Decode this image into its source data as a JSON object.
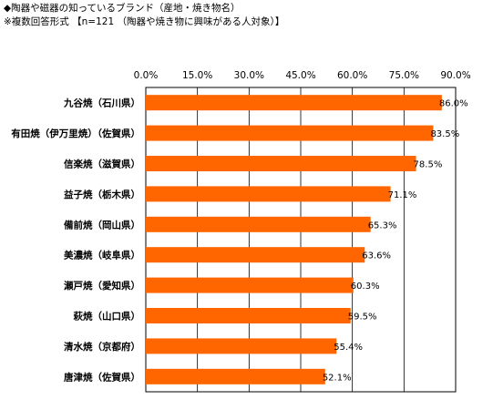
{
  "chart_data": {
    "type": "bar",
    "orientation": "horizontal",
    "title": "◆陶器や磁器の知っているブランド（産地・焼き物名）",
    "subtitle": "※複数回答形式 【n=121 （陶器や焼き物に興味がある人対象）】",
    "categories": [
      "九谷焼（石川県）",
      "有田焼（伊万里焼）（佐賀県）",
      "信楽焼（滋賀県）",
      "益子焼（栃木県）",
      "備前焼（岡山県）",
      "美濃焼（岐阜県）",
      "瀬戸焼（愛知県）",
      "萩焼（山口県）",
      "清水焼（京都府）",
      "唐津焼（佐賀県）"
    ],
    "values": [
      86.0,
      83.5,
      78.5,
      71.1,
      65.3,
      63.6,
      60.3,
      59.5,
      55.4,
      52.1
    ],
    "value_labels": [
      "86.0%",
      "83.5%",
      "78.5%",
      "71.1%",
      "65.3%",
      "63.6%",
      "60.3%",
      "59.5%",
      "55.4%",
      "52.1%"
    ],
    "xlim": [
      0,
      90
    ],
    "ticks": [
      0,
      15,
      30,
      45,
      60,
      75,
      90
    ],
    "tick_labels": [
      "0.0%",
      "15.0%",
      "30.0%",
      "45.0%",
      "60.0%",
      "75.0%",
      "90.0%"
    ],
    "grid": true,
    "bar_color": "#FF6600",
    "axis_position": "top"
  }
}
